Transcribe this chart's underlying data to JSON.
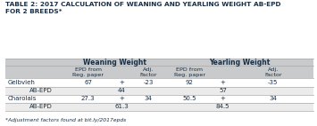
{
  "title": "TABLE 2: 2017 CALCULATION OF WEANING AND YEARLING WEIGHT AB-EPD\nFOR 2 BREEDS*",
  "footnote": "*Adjustment factors found at bit.ly/2017epds",
  "header_bg": "#c8cacc",
  "row_bg_white": "#ffffff",
  "row_bg_light": "#ebebeb",
  "col_group_headers": [
    "Weaning Weight",
    "Yearling Weight"
  ],
  "col_headers": [
    "EPD from\nReg. paper",
    "Adj.\nFactor",
    "EPD from\nReg. paper",
    "Adj.\nFactor"
  ],
  "rows": [
    {
      "label": "Gelbvieh",
      "indent": false,
      "values": [
        "67",
        "+",
        "-23",
        "92",
        "+",
        "-35"
      ]
    },
    {
      "label": "AB-EPD",
      "indent": true,
      "values": [
        "",
        "44",
        "",
        "",
        "57",
        ""
      ]
    },
    {
      "label": "Charolais",
      "indent": false,
      "values": [
        "27.3",
        "+",
        "34",
        "50.5",
        "+",
        "34"
      ]
    },
    {
      "label": "AB-EPD",
      "indent": true,
      "values": [
        "",
        "61.3",
        "",
        "",
        "84.5",
        ""
      ]
    }
  ],
  "title_color": "#1a2e44",
  "header_text_color": "#1a2e44",
  "cell_text_color": "#1a2e44",
  "footnote_color": "#1a2e44",
  "line_color": "#aaaaaa",
  "bg_color": "#ffffff",
  "title_fs": 5.3,
  "group_header_fs": 5.5,
  "sub_header_fs": 4.6,
  "cell_fs": 5.0,
  "footnote_fs": 4.3
}
